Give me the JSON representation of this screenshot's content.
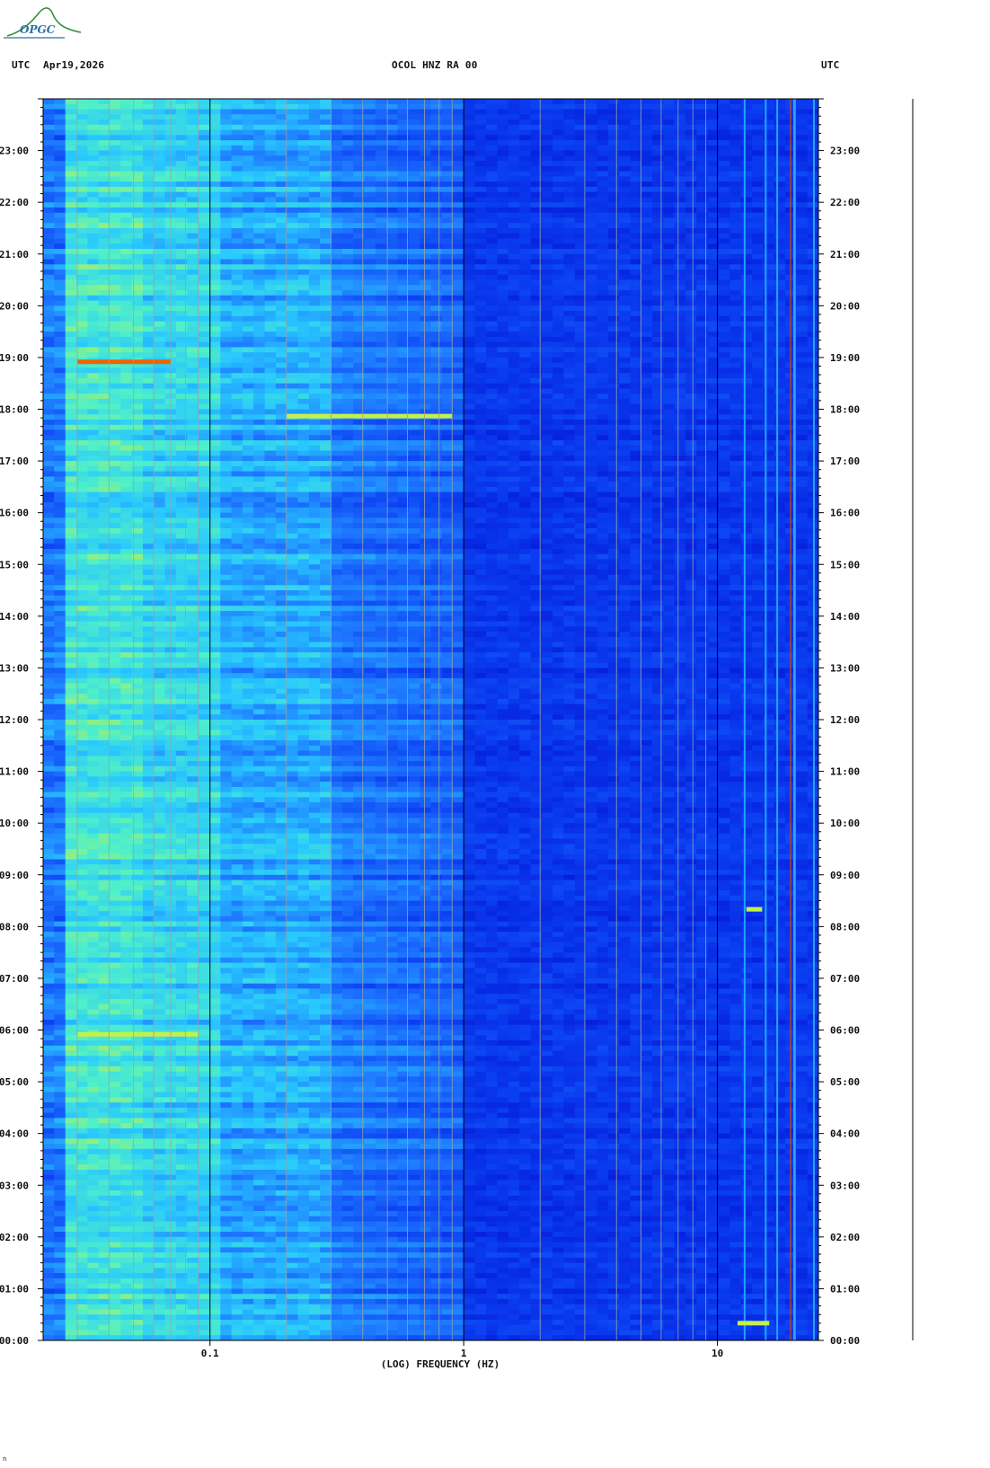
{
  "header": {
    "left_tz": "UTC",
    "date": "Apr19,2026",
    "station": "OCOL HNZ RA 00",
    "right_tz": "UTC"
  },
  "logo": {
    "text": "OPGC"
  },
  "footnote": "n",
  "chart_data": {
    "type": "heatmap",
    "title": "OCOL HNZ RA 00",
    "xlabel": "(LOG) FREQUENCY (HZ)",
    "x_scale": "log",
    "xlim": [
      0.022,
      25
    ],
    "x_tick_labels": [
      "0.1",
      "1",
      "10"
    ],
    "x_tick_values": [
      0.1,
      1,
      10
    ],
    "y_scale": "time",
    "ylim": [
      "00:00",
      "24:00"
    ],
    "y_tick_labels": [
      "00:00",
      "01:00",
      "02:00",
      "03:00",
      "04:00",
      "05:00",
      "06:00",
      "07:00",
      "08:00",
      "09:00",
      "10:00",
      "11:00",
      "12:00",
      "13:00",
      "14:00",
      "15:00",
      "16:00",
      "17:00",
      "18:00",
      "19:00",
      "20:00",
      "21:00",
      "22:00",
      "23:00"
    ],
    "colormap": [
      "#0000c8",
      "#0a3cf0",
      "#1e78ff",
      "#28c8ff",
      "#50f0c8",
      "#d2f03c",
      "#ffa000",
      "#e62800"
    ],
    "notable_events": [
      {
        "time": "18:55",
        "freq_range": [
          0.03,
          0.07
        ],
        "level": "high"
      },
      {
        "time": "05:55",
        "freq_range": [
          0.03,
          0.09
        ],
        "level": "moderate"
      },
      {
        "time": "17:52",
        "freq_range": [
          0.2,
          0.9
        ],
        "level": "moderate"
      },
      {
        "time": "08:20",
        "freq_range": [
          13,
          15
        ],
        "level": "moderate"
      },
      {
        "time": "00:20",
        "freq_range": [
          12,
          16
        ],
        "level": "moderate"
      }
    ]
  }
}
